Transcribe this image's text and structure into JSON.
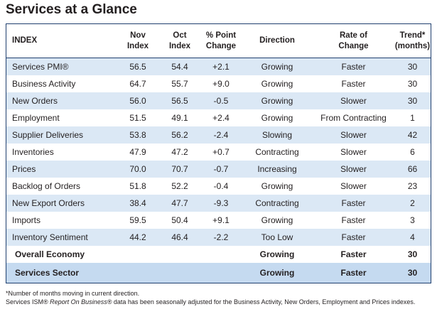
{
  "header": {
    "title": "Services at a Glance"
  },
  "table": {
    "columns": [
      [
        "INDEX"
      ],
      [
        "Nov",
        "Index"
      ],
      [
        "Oct",
        "Index"
      ],
      [
        "% Point",
        "Change"
      ],
      [
        "Direction"
      ],
      [
        "Rate of",
        "Change"
      ],
      [
        "Trend*",
        "(months)"
      ]
    ],
    "rows": [
      [
        "Services PMI®",
        "56.5",
        "54.4",
        "+2.1",
        "Growing",
        "Faster",
        "30"
      ],
      [
        "Business Activity",
        "64.7",
        "55.7",
        "+9.0",
        "Growing",
        "Faster",
        "30"
      ],
      [
        "New Orders",
        "56.0",
        "56.5",
        "-0.5",
        "Growing",
        "Slower",
        "30"
      ],
      [
        "Employment",
        "51.5",
        "49.1",
        "+2.4",
        "Growing",
        "From Contracting",
        "1"
      ],
      [
        "Supplier Deliveries",
        "53.8",
        "56.2",
        "-2.4",
        "Slowing",
        "Slower",
        "42"
      ],
      [
        "Inventories",
        "47.9",
        "47.2",
        "+0.7",
        "Contracting",
        "Slower",
        "6"
      ],
      [
        "Prices",
        "70.0",
        "70.7",
        "-0.7",
        "Increasing",
        "Slower",
        "66"
      ],
      [
        "Backlog of Orders",
        "51.8",
        "52.2",
        "-0.4",
        "Growing",
        "Slower",
        "23"
      ],
      [
        "New Export Orders",
        "38.4",
        "47.7",
        "-9.3",
        "Contracting",
        "Faster",
        "2"
      ],
      [
        "Imports",
        "59.5",
        "50.4",
        "+9.1",
        "Growing",
        "Faster",
        "3"
      ],
      [
        "Inventory Sentiment",
        "44.2",
        "46.4",
        "-2.2",
        "Too Low",
        "Faster",
        "4"
      ]
    ],
    "summary": [
      [
        "Overall Economy",
        "Growing",
        "Faster",
        "30"
      ],
      [
        "Services Sector",
        "Growing",
        "Faster",
        "30"
      ]
    ]
  },
  "footnotes": {
    "note": "*Number of months moving in current direction.",
    "adjustment": [
      "Services ISM® ",
      "Report On Business®",
      " data has been seasonally adjusted for the Business Activity, New Orders, Employment and Prices indexes."
    ]
  }
}
